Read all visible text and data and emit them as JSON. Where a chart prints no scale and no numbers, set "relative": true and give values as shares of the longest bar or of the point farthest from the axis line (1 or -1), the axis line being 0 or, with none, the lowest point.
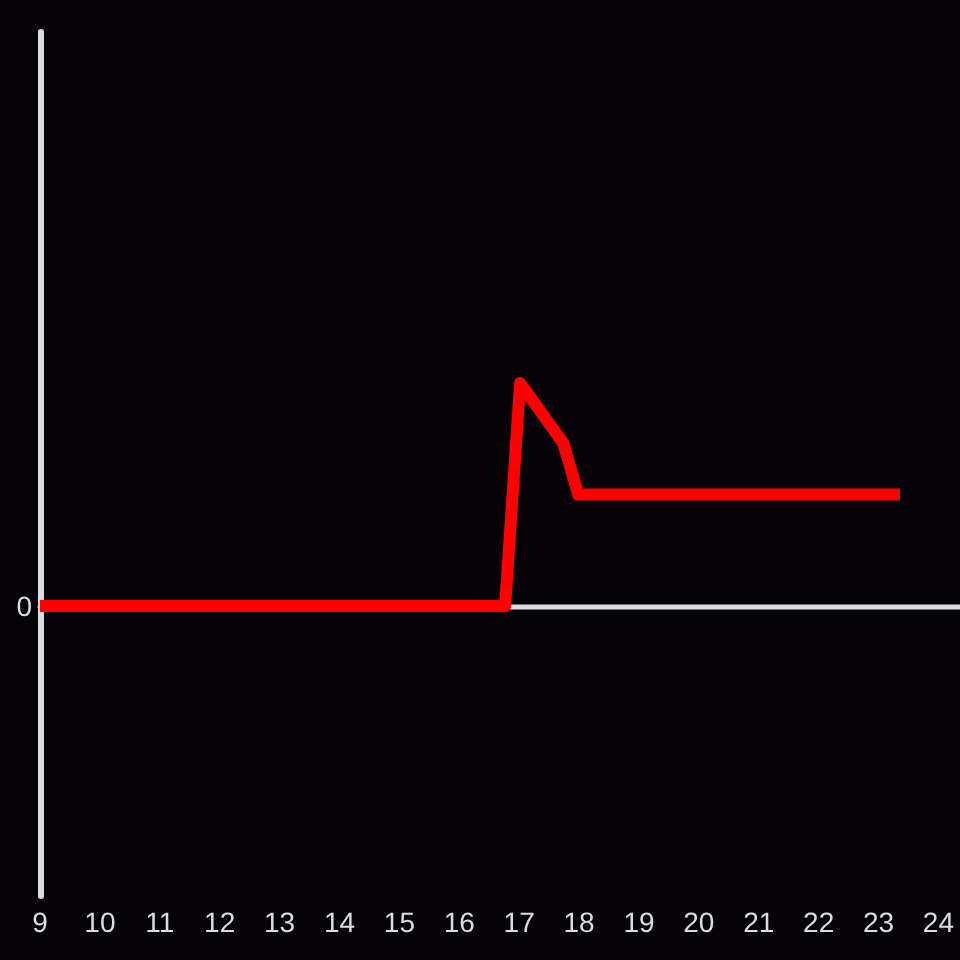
{
  "chart_data": {
    "type": "line",
    "relative": true,
    "x": [
      9,
      16.75,
      17,
      17.72,
      17.97,
      23.33
    ],
    "series": [
      {
        "color": "#ff0000",
        "values": [
          0,
          0,
          1,
          0.73,
          0.5,
          0.5
        ]
      }
    ],
    "xlim": [
      9,
      24.33
    ],
    "xticks": [
      9,
      10,
      11,
      12,
      13,
      14,
      15,
      16,
      17,
      18,
      19,
      20,
      21,
      22,
      23,
      24
    ],
    "annotations": [
      "0"
    ],
    "line_style": "solid"
  }
}
